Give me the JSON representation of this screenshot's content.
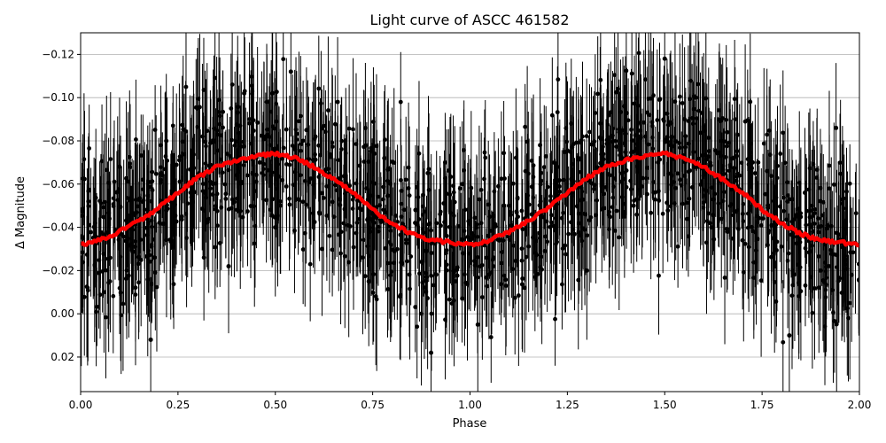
{
  "chart_data": {
    "type": "scatter",
    "title": "Light curve of ASCC 461582",
    "xlabel": "Phase",
    "ylabel": "Δ Magnitude",
    "xlim": [
      0.0,
      2.0
    ],
    "ylim": [
      0.036,
      -0.13
    ],
    "y_axis_inverted": true,
    "grid": "horizontal",
    "x_ticks": [
      {
        "value": 0.0,
        "label": "0.00"
      },
      {
        "value": 0.25,
        "label": "0.25"
      },
      {
        "value": 0.5,
        "label": "0.50"
      },
      {
        "value": 0.75,
        "label": "0.75"
      },
      {
        "value": 1.0,
        "label": "1.00"
      },
      {
        "value": 1.25,
        "label": "1.25"
      },
      {
        "value": 1.5,
        "label": "1.50"
      },
      {
        "value": 1.75,
        "label": "1.75"
      },
      {
        "value": 2.0,
        "label": "2.00"
      }
    ],
    "y_ticks": [
      {
        "value": -0.12,
        "label": "−0.12"
      },
      {
        "value": -0.1,
        "label": "−0.10"
      },
      {
        "value": -0.08,
        "label": "−0.08"
      },
      {
        "value": -0.06,
        "label": "−0.06"
      },
      {
        "value": -0.04,
        "label": "−0.04"
      },
      {
        "value": -0.02,
        "label": "−0.02"
      },
      {
        "value": 0.0,
        "label": "0.00"
      },
      {
        "value": 0.02,
        "label": "0.02"
      }
    ],
    "series": [
      {
        "role": "observations",
        "marker": "circle",
        "error_bars": true,
        "color": "#000000",
        "x": [
          0.02,
          0.06,
          0.1,
          0.14,
          0.18,
          0.22,
          0.26,
          0.3,
          0.34,
          0.38,
          0.42,
          0.46,
          0.5,
          0.54,
          0.58,
          0.62,
          0.66,
          0.7,
          0.74,
          0.78,
          0.82,
          0.86,
          0.9,
          0.94,
          0.98,
          1.02,
          1.06,
          1.1,
          1.14,
          1.18,
          1.22,
          1.26,
          1.3,
          1.34,
          1.38,
          1.42,
          1.46,
          1.5,
          1.54,
          1.58,
          1.62,
          1.66,
          1.7,
          1.74,
          1.78,
          1.82,
          1.86,
          1.9,
          1.94,
          1.98
        ],
        "y": [
          -0.052,
          -0.01,
          -0.068,
          -0.031,
          0.012,
          -0.08,
          -0.045,
          -0.095,
          -0.06,
          -0.022,
          -0.102,
          -0.07,
          -0.04,
          -0.112,
          -0.085,
          -0.03,
          -0.098,
          -0.055,
          -0.015,
          -0.072,
          -0.008,
          -0.048,
          0.018,
          -0.036,
          -0.06,
          0.005,
          -0.026,
          -0.05,
          -0.012,
          -0.078,
          -0.04,
          -0.088,
          -0.02,
          -0.066,
          -0.104,
          -0.05,
          -0.092,
          -0.118,
          -0.062,
          -0.1,
          -0.04,
          -0.084,
          -0.034,
          -0.07,
          -0.028,
          0.01,
          -0.056,
          -0.02,
          -0.086,
          -0.018
        ],
        "yerr": [
          0.03,
          0.028,
          0.032,
          0.03,
          0.029,
          0.031,
          0.03,
          0.028,
          0.03,
          0.031,
          0.029,
          0.03,
          0.032,
          0.03,
          0.029,
          0.031,
          0.03,
          0.028,
          0.03,
          0.031,
          0.029,
          0.03,
          0.032,
          0.03,
          0.029,
          0.031,
          0.03,
          0.028,
          0.03,
          0.031,
          0.029,
          0.03,
          0.032,
          0.03,
          0.029,
          0.031,
          0.03,
          0.028,
          0.03,
          0.031,
          0.029,
          0.03,
          0.032,
          0.03,
          0.029,
          0.031,
          0.03,
          0.028,
          0.03,
          0.031
        ]
      },
      {
        "role": "binned-mean",
        "color": "#ff0000",
        "x": [
          0.0,
          0.05,
          0.1,
          0.15,
          0.2,
          0.25,
          0.3,
          0.35,
          0.4,
          0.45,
          0.5,
          0.55,
          0.6,
          0.65,
          0.7,
          0.75,
          0.8,
          0.85,
          0.9,
          0.95,
          1.0,
          1.05,
          1.1,
          1.15,
          1.2,
          1.25,
          1.3,
          1.35,
          1.4,
          1.45,
          1.5,
          1.55,
          1.6,
          1.65,
          1.7,
          1.75,
          1.8,
          1.85,
          1.9,
          1.95,
          2.0
        ],
        "y": [
          -0.032,
          -0.034,
          -0.038,
          -0.043,
          -0.049,
          -0.056,
          -0.063,
          -0.068,
          -0.071,
          -0.073,
          -0.074,
          -0.072,
          -0.068,
          -0.062,
          -0.056,
          -0.048,
          -0.042,
          -0.037,
          -0.034,
          -0.033,
          -0.032,
          -0.034,
          -0.038,
          -0.043,
          -0.049,
          -0.056,
          -0.063,
          -0.068,
          -0.071,
          -0.073,
          -0.074,
          -0.072,
          -0.068,
          -0.062,
          -0.056,
          -0.048,
          -0.042,
          -0.037,
          -0.034,
          -0.033,
          -0.032
        ]
      }
    ]
  }
}
